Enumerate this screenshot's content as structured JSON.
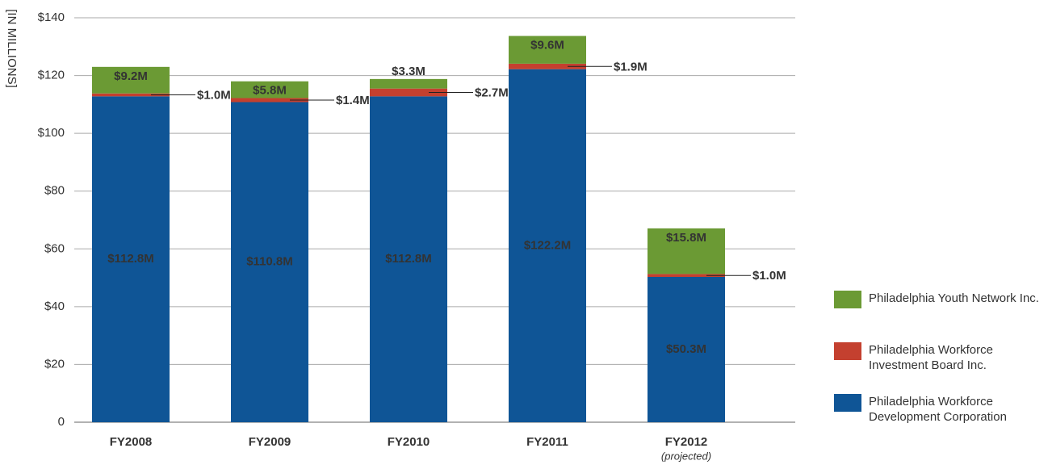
{
  "chart_data": {
    "type": "stacked_bar",
    "y_label": "[IN MILLIONS]",
    "categories": [
      "FY2008",
      "FY2009",
      "FY2010",
      "FY2011",
      "FY2012"
    ],
    "category_notes": [
      null,
      null,
      null,
      null,
      "(projected)"
    ],
    "ylim": [
      0,
      140
    ],
    "yticks": [
      0,
      {
        "value": 20,
        "label": "$20"
      },
      {
        "value": 40,
        "label": "$40"
      },
      {
        "value": 60,
        "label": "$60"
      },
      {
        "value": 80,
        "label": "$80"
      },
      {
        "value": 100,
        "label": "$100"
      },
      {
        "value": 120,
        "label": "$120"
      },
      {
        "value": 140,
        "label": "$140"
      }
    ],
    "grid": true,
    "series": [
      {
        "name": "Philadelphia Workforce Development Corporation",
        "color": "#0f5596",
        "label_position": "inside",
        "values": [
          112.8,
          110.8,
          112.8,
          122.2,
          50.3
        ],
        "value_labels": [
          "$112.8M",
          "$110.8M",
          "$112.8M",
          "$122.2M",
          "$50.3M"
        ]
      },
      {
        "name": "Philadelphia Workforce Investment Board Inc.",
        "color": "#c4402f",
        "label_position": "outside",
        "values": [
          1.0,
          1.4,
          2.7,
          1.9,
          1.0
        ],
        "value_labels": [
          "$1.0M",
          "$1.4M",
          "$2.7M",
          "$1.9M",
          "$1.0M"
        ]
      },
      {
        "name": "Philadelphia Youth Network Inc.",
        "color": "#6b9a34",
        "label_position": "inside",
        "values": [
          9.2,
          5.8,
          3.3,
          9.6,
          15.8
        ],
        "value_labels": [
          "$9.2M",
          "$5.8M",
          "$3.3M",
          "$9.6M",
          "$15.8M"
        ]
      }
    ],
    "legend_position": "right"
  }
}
